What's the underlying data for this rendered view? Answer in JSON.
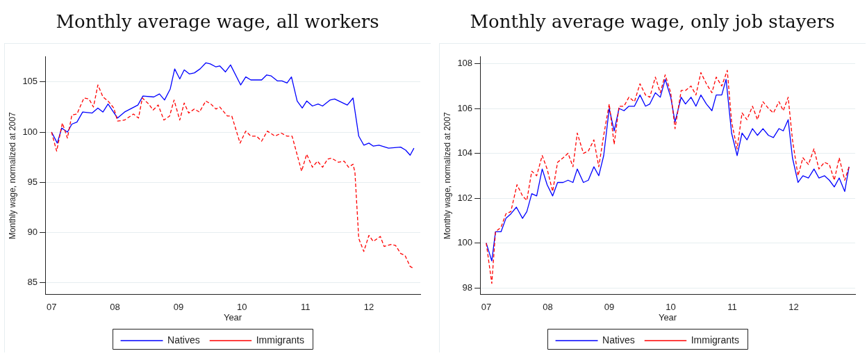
{
  "chart_data": [
    {
      "type": "line",
      "title": "Monthly average wage, all workers",
      "xlabel": "Year",
      "ylabel": "Monthly wage, normalized at 2007",
      "xlim": [
        6.9,
        12.81
      ],
      "ylim": [
        83.8,
        107.5
      ],
      "xticks": [
        {
          "value": 7,
          "label": "07"
        },
        {
          "value": 8,
          "label": "08"
        },
        {
          "value": 9,
          "label": "09"
        },
        {
          "value": 10,
          "label": "10"
        },
        {
          "value": 11,
          "label": "11"
        },
        {
          "value": 12,
          "label": "12"
        }
      ],
      "yticks": [
        85,
        90,
        95,
        100,
        105
      ],
      "grid": "y",
      "legend": "bottom",
      "marker": "none",
      "series": [
        {
          "name": "Natives",
          "color": "#0000ff",
          "line_style": "solid",
          "x": [
            7.0,
            7.09,
            7.16,
            7.25,
            7.32,
            7.4,
            7.49,
            7.64,
            7.73,
            7.81,
            7.89,
            8.04,
            8.15,
            8.36,
            8.44,
            8.61,
            8.7,
            8.78,
            8.87,
            8.94,
            9.02,
            9.09,
            9.17,
            9.25,
            9.34,
            9.43,
            9.5,
            9.59,
            9.65,
            9.74,
            9.82,
            9.98,
            10.06,
            10.14,
            10.31,
            10.39,
            10.46,
            10.56,
            10.63,
            10.71,
            10.78,
            10.87,
            10.95,
            11.02,
            11.11,
            11.2,
            11.27,
            11.39,
            11.46,
            11.66,
            11.75,
            11.84,
            11.92,
            12.0,
            12.07,
            12.16,
            12.31,
            12.5,
            12.58,
            12.65,
            12.71
          ],
          "values": [
            100,
            98.9,
            100.4,
            100.0,
            100.8,
            101.0,
            102.0,
            101.9,
            102.4,
            102.0,
            102.8,
            101.4,
            102.0,
            102.7,
            103.6,
            103.5,
            103.8,
            103.2,
            104.3,
            106.3,
            105.3,
            106.2,
            105.8,
            105.9,
            106.3,
            106.9,
            106.8,
            106.5,
            106.6,
            106.0,
            106.7,
            104.7,
            105.5,
            105.2,
            105.2,
            105.7,
            105.6,
            105.1,
            105.1,
            104.9,
            105.5,
            103.1,
            102.4,
            103.1,
            102.6,
            102.8,
            102.6,
            103.2,
            103.3,
            102.7,
            103.4,
            99.6,
            98.7,
            98.9,
            98.6,
            98.7,
            98.4,
            98.5,
            98.2,
            97.7,
            98.4
          ]
        },
        {
          "name": "Immigrants",
          "color": "#ff0000",
          "line_style": "dashed",
          "x": [
            7.0,
            7.08,
            7.17,
            7.25,
            7.32,
            7.4,
            7.51,
            7.59,
            7.66,
            7.73,
            7.81,
            7.89,
            7.98,
            8.04,
            8.15,
            8.29,
            8.37,
            8.43,
            8.53,
            8.6,
            8.68,
            8.77,
            8.86,
            8.93,
            9.02,
            9.09,
            9.16,
            9.25,
            9.33,
            9.43,
            9.51,
            9.59,
            9.65,
            9.77,
            9.84,
            9.97,
            10.06,
            10.14,
            10.23,
            10.31,
            10.4,
            10.52,
            10.62,
            10.71,
            10.79,
            10.94,
            11.02,
            11.11,
            11.19,
            11.27,
            11.35,
            11.41,
            11.52,
            11.61,
            11.68,
            11.75,
            11.78,
            11.84,
            11.92,
            12.0,
            12.07,
            12.18,
            12.24,
            12.35,
            12.42,
            12.5,
            12.57,
            12.65,
            12.71
          ],
          "values": [
            100,
            98.1,
            100.9,
            99.4,
            101.7,
            101.8,
            103.4,
            103.3,
            102.5,
            104.7,
            103.5,
            103.1,
            102.4,
            101.1,
            101.2,
            101.8,
            101.4,
            103.4,
            102.8,
            102.2,
            102.7,
            101.2,
            101.6,
            103.2,
            101.2,
            102.9,
            101.9,
            102.3,
            102.0,
            103.1,
            102.8,
            102.3,
            102.5,
            101.6,
            101.6,
            98.9,
            100.1,
            99.6,
            99.6,
            99.1,
            100.1,
            99.6,
            99.9,
            99.6,
            99.6,
            96.1,
            97.8,
            96.5,
            97.1,
            96.5,
            97.3,
            97.4,
            97.0,
            97.1,
            96.5,
            96.8,
            96.0,
            89.4,
            88.1,
            89.7,
            89.1,
            89.6,
            88.6,
            88.8,
            88.7,
            87.9,
            87.7,
            86.6,
            86.4
          ]
        }
      ]
    },
    {
      "type": "line",
      "title": "Monthly average wage, only job stayers",
      "xlabel": "Year",
      "ylabel": "Monthly wage, normalized at 2007",
      "xlim": [
        6.9,
        13.0
      ],
      "ylim": [
        97.7,
        108.3
      ],
      "xticks": [
        {
          "value": 7,
          "label": "07"
        },
        {
          "value": 8,
          "label": "08"
        },
        {
          "value": 9,
          "label": "09"
        },
        {
          "value": 10,
          "label": "10"
        },
        {
          "value": 11,
          "label": "11"
        },
        {
          "value": 12,
          "label": "12"
        }
      ],
      "yticks": [
        98,
        100,
        102,
        104,
        106,
        108
      ],
      "grid": "y",
      "legend": "bottom",
      "marker": "none",
      "series": [
        {
          "name": "Natives",
          "color": "#0000ff",
          "line_style": "solid",
          "x": [
            7.0,
            7.09,
            7.15,
            7.24,
            7.32,
            7.4,
            7.49,
            7.59,
            7.66,
            7.74,
            7.82,
            7.91,
            7.99,
            8.08,
            8.16,
            8.25,
            8.33,
            8.41,
            8.48,
            8.58,
            8.66,
            8.75,
            8.83,
            8.91,
            9.0,
            9.08,
            9.16,
            9.24,
            9.32,
            9.41,
            9.5,
            9.59,
            9.66,
            9.75,
            9.83,
            9.91,
            10.0,
            10.07,
            10.17,
            10.24,
            10.33,
            10.41,
            10.49,
            10.58,
            10.67,
            10.74,
            10.83,
            10.9,
            10.99,
            11.08,
            11.16,
            11.24,
            11.33,
            11.41,
            11.5,
            11.59,
            11.67,
            11.76,
            11.83,
            11.91,
            11.98,
            12.07,
            12.15,
            12.24,
            12.33,
            12.41,
            12.5,
            12.58,
            12.66,
            12.74,
            12.83,
            12.9
          ],
          "values": [
            100,
            99.2,
            100.5,
            100.5,
            101.1,
            101.3,
            101.6,
            101.1,
            101.4,
            102.2,
            102.1,
            103.3,
            102.6,
            102.1,
            102.7,
            102.7,
            102.8,
            102.7,
            103.3,
            102.7,
            102.8,
            103.4,
            103.0,
            103.9,
            106.0,
            105.0,
            106.0,
            105.9,
            106.1,
            106.1,
            106.6,
            106.1,
            106.2,
            106.7,
            106.5,
            107.3,
            106.5,
            105.4,
            106.5,
            106.2,
            106.5,
            106.1,
            106.6,
            106.2,
            105.9,
            106.6,
            106.6,
            107.3,
            104.9,
            103.9,
            104.9,
            104.6,
            105.1,
            104.8,
            105.1,
            104.8,
            104.7,
            105.1,
            105.0,
            105.5,
            103.8,
            102.7,
            103.0,
            102.9,
            103.3,
            102.9,
            103.0,
            102.8,
            102.5,
            102.9,
            102.3,
            103.4
          ]
        },
        {
          "name": "Immigrants",
          "color": "#ff0000",
          "line_style": "dashed",
          "x": [
            7.0,
            7.09,
            7.15,
            7.24,
            7.32,
            7.4,
            7.5,
            7.59,
            7.66,
            7.74,
            7.82,
            7.91,
            7.99,
            8.08,
            8.16,
            8.25,
            8.33,
            8.41,
            8.48,
            8.58,
            8.66,
            8.75,
            8.83,
            8.91,
            9.0,
            9.08,
            9.16,
            9.24,
            9.32,
            9.41,
            9.5,
            9.59,
            9.66,
            9.75,
            9.83,
            9.91,
            10.0,
            10.07,
            10.17,
            10.24,
            10.33,
            10.41,
            10.49,
            10.58,
            10.67,
            10.74,
            10.83,
            10.92,
            10.99,
            11.08,
            11.16,
            11.24,
            11.33,
            11.41,
            11.5,
            11.59,
            11.67,
            11.76,
            11.83,
            11.91,
            11.98,
            12.07,
            12.15,
            12.24,
            12.33,
            12.41,
            12.5,
            12.58,
            12.66,
            12.74,
            12.83,
            12.9
          ],
          "values": [
            100,
            98.2,
            100.5,
            100.7,
            101.3,
            101.4,
            102.6,
            102.1,
            101.9,
            103.2,
            103.0,
            103.9,
            103.3,
            102.3,
            103.6,
            103.8,
            104.0,
            103.4,
            104.9,
            104.0,
            104.1,
            104.6,
            103.4,
            104.8,
            106.2,
            104.4,
            106.1,
            106.1,
            106.5,
            106.3,
            107.1,
            106.6,
            106.5,
            107.4,
            106.7,
            107.5,
            106.7,
            105.1,
            106.8,
            106.8,
            107.0,
            106.6,
            107.6,
            107.1,
            106.7,
            107.4,
            107.0,
            107.7,
            105.4,
            104.2,
            105.8,
            105.5,
            106.1,
            105.5,
            106.3,
            106.0,
            105.8,
            106.3,
            105.9,
            106.5,
            104.6,
            103.0,
            103.8,
            103.5,
            104.2,
            103.3,
            103.6,
            103.5,
            102.8,
            103.8,
            102.8,
            103.4
          ]
        }
      ]
    }
  ]
}
